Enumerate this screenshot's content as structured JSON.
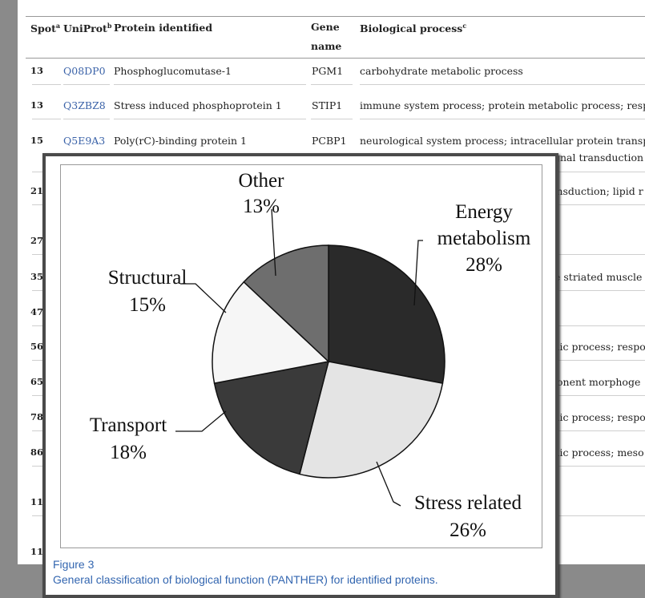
{
  "table": {
    "header": {
      "spot": "Spot",
      "spot_sup": "a",
      "uniprot": "UniProt",
      "uniprot_sup": "b",
      "protein": "Protein identified",
      "gene": "Gene name",
      "process": "Biological process",
      "process_sup": "c"
    },
    "rows": [
      {
        "spot": "13",
        "uniprot": "Q08DP0",
        "protein": "Phosphoglucomutase-1",
        "gene": "PGM1",
        "process": "carbohydrate metabolic process"
      },
      {
        "spot": "13",
        "uniprot": "Q3ZBZ8",
        "protein": "Stress induced phosphoprotein 1",
        "gene": "STIP1",
        "process": "immune system process; protein metabolic process; respo"
      },
      {
        "spot": "15",
        "uniprot": "Q5E9A3",
        "protein": "Poly(rC)-binding protein 1",
        "gene": "PCBP1",
        "process": "neurological system process; intracellular protein transpo",
        "process_2": "ignal transduction"
      },
      {
        "spot": "21",
        "process": "ansduction; lipid r"
      },
      {
        "spot": "27"
      },
      {
        "spot": "35",
        "process": "te striated muscle"
      },
      {
        "spot": "47"
      },
      {
        "spot": "56",
        "process": "olic process; respo"
      },
      {
        "spot": "65",
        "process": "ponent morphoge"
      },
      {
        "spot": "78",
        "process": "olic process; respo"
      },
      {
        "spot": "86",
        "process": "olic process; meso"
      },
      {
        "spot": "11"
      },
      {
        "spot": "11"
      }
    ]
  },
  "figure": {
    "label": "Figure 3",
    "caption": "General classification of biological function (PANTHER) for identified proteins."
  },
  "chart_data": {
    "type": "pie",
    "categories": [
      "Energy metabolism",
      "Stress related",
      "Transport",
      "Structural",
      "Other"
    ],
    "values": [
      28,
      26,
      18,
      15,
      13
    ],
    "value_labels": [
      "28%",
      "26%",
      "18%",
      "15%",
      "13%"
    ],
    "colors": [
      "#2a2a2a",
      "#e4e4e4",
      "#3a3a3a",
      "#f6f6f6",
      "#6e6e6e"
    ]
  }
}
